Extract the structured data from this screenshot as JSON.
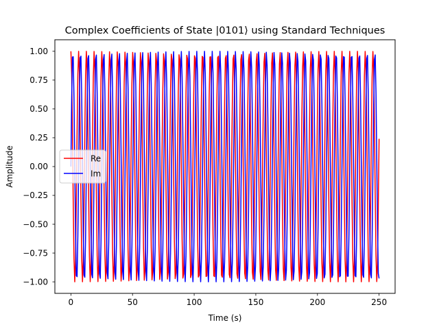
{
  "chart_data": {
    "type": "line",
    "title": "Complex Coefficients of State |0101⟩ using Standard Techniques",
    "xlabel": "Time (s)",
    "ylabel": "Amplitude",
    "xlim": [
      -13,
      263
    ],
    "ylim": [
      -1.1,
      1.1
    ],
    "xticks": [
      0,
      50,
      100,
      150,
      200,
      250
    ],
    "xtick_labels": [
      "0",
      "50",
      "100",
      "150",
      "200",
      "250"
    ],
    "yticks": [
      -1.0,
      -0.75,
      -0.5,
      -0.25,
      0.0,
      0.25,
      0.5,
      0.75,
      1.0
    ],
    "ytick_labels": [
      "−1.00",
      "−0.75",
      "−0.50",
      "−0.25",
      "0.00",
      "0.25",
      "0.50",
      "0.75",
      "1.00"
    ],
    "grid": false,
    "legend": {
      "placement": "center-left",
      "entries": [
        "Re",
        "Im"
      ]
    },
    "sampling": {
      "t_start": 0,
      "t_end": 250,
      "samples": 400
    },
    "series": [
      {
        "name": "Re",
        "color": "#ff0000",
        "function": "cos",
        "amplitude": 1.0,
        "angular_frequency": 1.0,
        "phase": 0
      },
      {
        "name": "Im",
        "color": "#0000ff",
        "function": "sin",
        "amplitude": 1.0,
        "angular_frequency": 1.0,
        "phase": 0
      }
    ]
  }
}
